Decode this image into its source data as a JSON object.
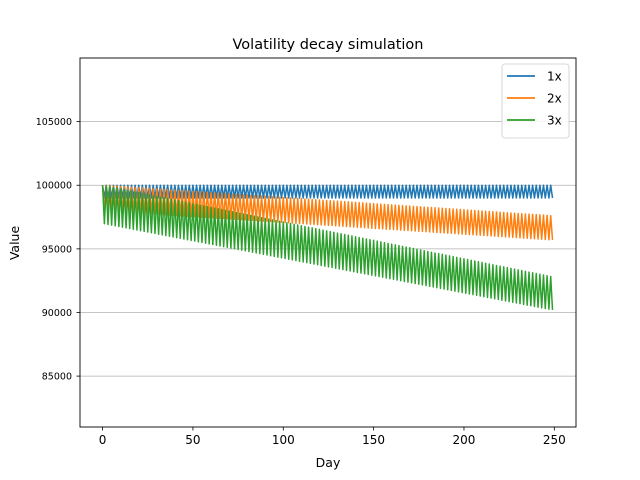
{
  "chart_data": {
    "type": "line",
    "title": "Volatility decay simulation",
    "xlabel": "Day",
    "ylabel": "Value",
    "xlim": [
      -12.5,
      262
    ],
    "ylim": [
      81000,
      110000
    ],
    "xticks": [
      0,
      50,
      100,
      150,
      200,
      250
    ],
    "yticks": [
      85000,
      90000,
      95000,
      100000,
      105000
    ],
    "ygrid": true,
    "legend_position": "top-right",
    "days": 250,
    "series": [
      {
        "name": "1x",
        "color": "#1f77b4",
        "model": "alternating daily returns (+r, -r) producing a zig-zag band",
        "start": 100000,
        "end_high": 100000,
        "end_low": 99000,
        "band_start": [
          99000,
          100000
        ],
        "band_end": [
          99000,
          100000
        ]
      },
      {
        "name": "2x",
        "color": "#ff7f0e",
        "start": 100000,
        "band_start": [
          98000,
          100000
        ],
        "band_end": [
          95700,
          97600
        ]
      },
      {
        "name": "3x",
        "color": "#2ca02c",
        "start": 100000,
        "band_start": [
          97000,
          100000
        ],
        "band_end": [
          90200,
          92800
        ]
      }
    ]
  }
}
